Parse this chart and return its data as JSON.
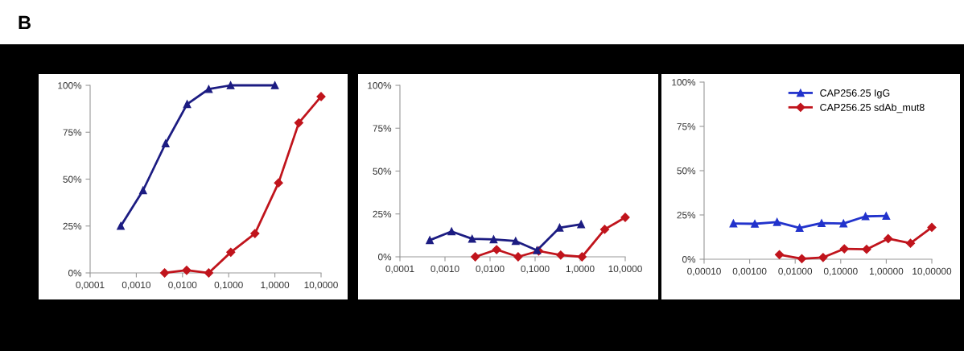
{
  "chart_data": [
    {
      "type": "line",
      "annotations": [
        "B"
      ],
      "log": "x",
      "legend": false,
      "grid": false,
      "line_style": "solid",
      "xlim": [
        0.0001,
        10
      ],
      "xticks": [
        {
          "value": 0.0001,
          "label": "0,0001"
        },
        {
          "value": 0.001,
          "label": "0,0010"
        },
        {
          "value": 0.01,
          "label": "0,0100"
        },
        {
          "value": 0.1,
          "label": "0,1000"
        },
        {
          "value": 1,
          "label": "1,0000"
        },
        {
          "value": 10,
          "label": "10,0000"
        }
      ],
      "ylim": [
        0,
        100
      ],
      "yticks": [
        {
          "value": 0,
          "label": "0%"
        },
        {
          "value": 25,
          "label": "25%"
        },
        {
          "value": 50,
          "label": "50%"
        },
        {
          "value": 75,
          "label": "75%"
        },
        {
          "value": 100,
          "label": "100%"
        }
      ],
      "series": [
        {
          "color": "#1c1c82",
          "marker": "triangle",
          "x": [
            0.00046,
            0.0014,
            0.0043,
            0.0126,
            0.037,
            0.11,
            1.0
          ],
          "values": [
            25,
            44,
            69,
            90,
            98,
            100,
            100
          ]
        },
        {
          "color": "#c0141c",
          "marker": "diamond",
          "x": [
            0.0041,
            0.0123,
            0.037,
            0.111,
            0.37,
            1.2,
            3.3,
            10
          ],
          "values": [
            0,
            1.4,
            0,
            11,
            21,
            48,
            80,
            94
          ]
        }
      ]
    },
    {
      "type": "line",
      "log": "x",
      "legend": false,
      "grid": false,
      "line_style": "solid",
      "xlim": [
        0.0001,
        10
      ],
      "xticks": [
        {
          "value": 0.0001,
          "label": "0,0001"
        },
        {
          "value": 0.001,
          "label": "0,0010"
        },
        {
          "value": 0.01,
          "label": "0,0100"
        },
        {
          "value": 0.1,
          "label": "0,1000"
        },
        {
          "value": 1,
          "label": "1,0000"
        },
        {
          "value": 10,
          "label": "10,0000"
        }
      ],
      "ylim": [
        0,
        100
      ],
      "yticks": [
        {
          "value": 0,
          "label": "0%"
        },
        {
          "value": 25,
          "label": "25%"
        },
        {
          "value": 50,
          "label": "50%"
        },
        {
          "value": 75,
          "label": "75%"
        },
        {
          "value": 100,
          "label": "100%"
        }
      ],
      "series": [
        {
          "color": "#1c1c82",
          "marker": "triangle",
          "x": [
            0.00046,
            0.0014,
            0.004,
            0.012,
            0.037,
            0.11,
            0.35,
            1.05
          ],
          "values": [
            9.7,
            14.8,
            10.5,
            10.2,
            9.2,
            3.8,
            17,
            19
          ]
        },
        {
          "color": "#c0141c",
          "marker": "diamond",
          "x": [
            0.0047,
            0.014,
            0.042,
            0.12,
            0.37,
            1.1,
            3.5,
            10
          ],
          "values": [
            0,
            4.2,
            0,
            3.4,
            1,
            0,
            16,
            23
          ]
        }
      ]
    },
    {
      "type": "line",
      "log": "x",
      "legend": "top right",
      "grid": false,
      "line_style": "solid",
      "xlim": [
        0.0001,
        10
      ],
      "xticks": [
        {
          "value": 0.0001,
          "label": "0,00010"
        },
        {
          "value": 0.001,
          "label": "0,00100"
        },
        {
          "value": 0.01,
          "label": "0,01000"
        },
        {
          "value": 0.1,
          "label": "0,10000"
        },
        {
          "value": 1,
          "label": "1,00000"
        },
        {
          "value": 10,
          "label": "10,00000"
        }
      ],
      "ylim": [
        0,
        100
      ],
      "yticks": [
        {
          "value": 0,
          "label": "0%"
        },
        {
          "value": 25,
          "label": "25%"
        },
        {
          "value": 50,
          "label": "50%"
        },
        {
          "value": 75,
          "label": "75%"
        },
        {
          "value": 100,
          "label": "100%"
        }
      ],
      "series": [
        {
          "name": "CAP256.25 IgG",
          "color": "#2233cc",
          "marker": "triangle",
          "x": [
            0.00044,
            0.0013,
            0.004,
            0.0125,
            0.038,
            0.115,
            0.35,
            1.0
          ],
          "values": [
            20.2,
            20,
            21,
            17.7,
            20.4,
            20.2,
            24.2,
            24.5
          ]
        },
        {
          "name": "CAP256.25 sdAb_mut8",
          "color": "#c0141c",
          "marker": "diamond",
          "x": [
            0.0045,
            0.014,
            0.041,
            0.12,
            0.37,
            1.1,
            3.4,
            10
          ],
          "values": [
            2.6,
            0.3,
            1,
            5.9,
            5.6,
            11.6,
            9,
            18
          ]
        }
      ]
    }
  ]
}
